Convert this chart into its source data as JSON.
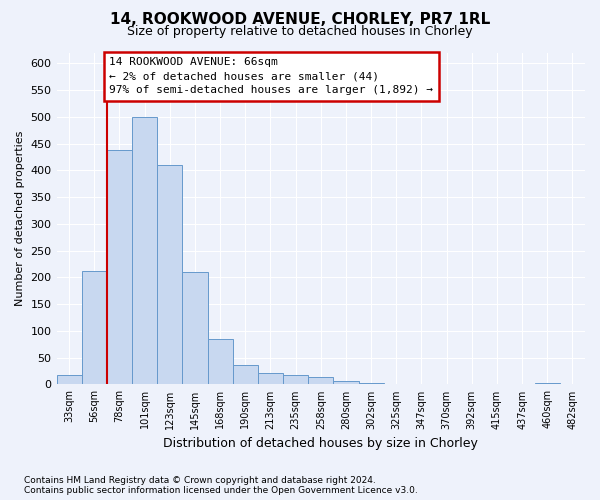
{
  "title": "14, ROOKWOOD AVENUE, CHORLEY, PR7 1RL",
  "subtitle": "Size of property relative to detached houses in Chorley",
  "xlabel": "Distribution of detached houses by size in Chorley",
  "ylabel": "Number of detached properties",
  "bin_labels": [
    "33sqm",
    "56sqm",
    "78sqm",
    "101sqm",
    "123sqm",
    "145sqm",
    "168sqm",
    "190sqm",
    "213sqm",
    "235sqm",
    "258sqm",
    "280sqm",
    "302sqm",
    "325sqm",
    "347sqm",
    "370sqm",
    "392sqm",
    "415sqm",
    "437sqm",
    "460sqm",
    "482sqm"
  ],
  "counts": [
    18,
    212,
    437,
    500,
    410,
    210,
    84,
    36,
    22,
    18,
    13,
    7,
    2,
    0,
    0,
    0,
    0,
    0,
    0,
    2,
    0
  ],
  "bar_color": "#c8d8f0",
  "bar_edge_color": "#6699cc",
  "annotation_title": "14 ROOKWOOD AVENUE: 66sqm",
  "annotation_line1": "← 2% of detached houses are smaller (44)",
  "annotation_line2": "97% of semi-detached houses are larger (1,892) →",
  "annotation_box_color": "#ffffff",
  "annotation_box_edge": "#cc0000",
  "vline_color": "#cc0000",
  "vline_pos": 1.5,
  "ylim": [
    0,
    620
  ],
  "yticks": [
    0,
    50,
    100,
    150,
    200,
    250,
    300,
    350,
    400,
    450,
    500,
    550,
    600
  ],
  "footnote1": "Contains HM Land Registry data © Crown copyright and database right 2024.",
  "footnote2": "Contains public sector information licensed under the Open Government Licence v3.0.",
  "bg_color": "#eef2fb",
  "plot_bg_color": "#eef2fb"
}
